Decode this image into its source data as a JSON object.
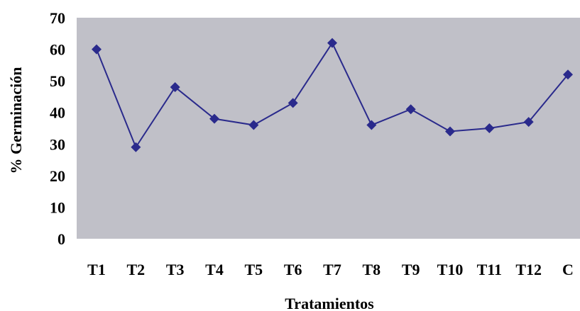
{
  "chart_data": {
    "type": "line",
    "title": "",
    "xlabel": "Tratamientos",
    "ylabel": "% Germinación",
    "categories": [
      "T1",
      "T2",
      "T3",
      "T4",
      "T5",
      "T6",
      "T7",
      "T8",
      "T9",
      "T10",
      "T11",
      "T12",
      "C"
    ],
    "series": [
      {
        "values": [
          60,
          29,
          48,
          38,
          36,
          43,
          62,
          36,
          41,
          34,
          35,
          37,
          52
        ]
      }
    ],
    "ylim": [
      0,
      70
    ],
    "yticks": [
      0,
      10,
      20,
      30,
      40,
      50,
      60,
      70
    ],
    "grid": false,
    "legend": "none",
    "colors": {
      "plot_background": "#c0c0c8",
      "line": "#2a2a8c",
      "marker": "#2a2a8c"
    },
    "marker": "diamond"
  }
}
